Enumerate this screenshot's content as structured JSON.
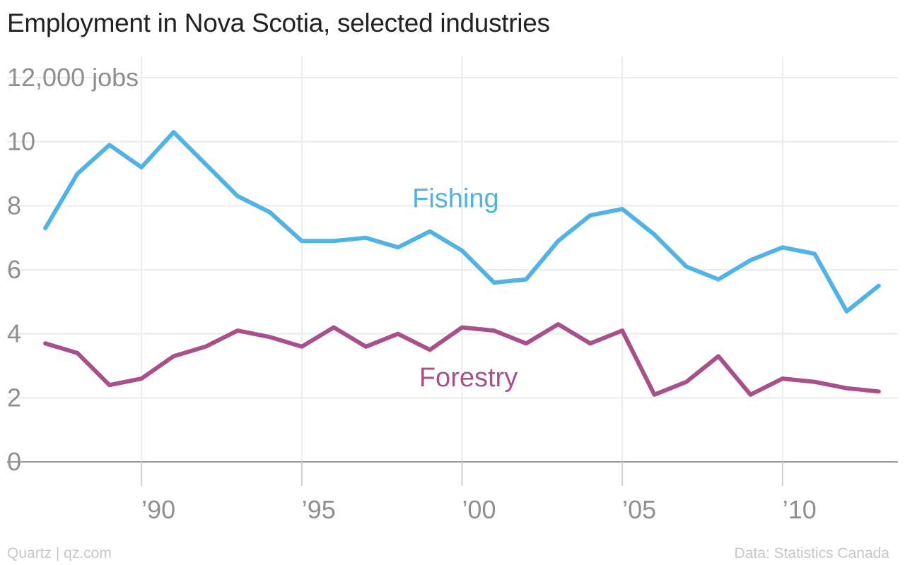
{
  "title": "Employment in Nova Scotia, selected industries",
  "footer": {
    "source_left": "Quartz | qz.com",
    "source_right": "Data: Statistics Canada"
  },
  "chart_data": {
    "type": "line",
    "title": "Employment in Nova Scotia, selected industries",
    "ylabel": "jobs",
    "ylim": [
      0,
      12000
    ],
    "xlim": [
      1986.6,
      2013.6
    ],
    "grid": true,
    "y_ticks": [
      {
        "value": 0,
        "label": "0"
      },
      {
        "value": 2000,
        "label": "2"
      },
      {
        "value": 4000,
        "label": "4"
      },
      {
        "value": 6000,
        "label": "6"
      },
      {
        "value": 8000,
        "label": "8"
      },
      {
        "value": 10000,
        "label": "10"
      },
      {
        "value": 12000,
        "label": "12,000 jobs"
      }
    ],
    "x_ticks": [
      {
        "value": 1990,
        "label": "’90"
      },
      {
        "value": 1995,
        "label": "’95"
      },
      {
        "value": 2000,
        "label": "’00"
      },
      {
        "value": 2005,
        "label": "’05"
      },
      {
        "value": 2010,
        "label": "’10"
      }
    ],
    "x": [
      1987,
      1988,
      1989,
      1990,
      1991,
      1992,
      1993,
      1994,
      1995,
      1996,
      1997,
      1998,
      1999,
      2000,
      2001,
      2002,
      2003,
      2004,
      2005,
      2006,
      2007,
      2008,
      2009,
      2010,
      2011,
      2012,
      2013
    ],
    "series": [
      {
        "name": "Fishing",
        "color": "#51b2e5",
        "label_at": [
          1999.8,
          8000
        ],
        "values": [
          7300,
          9000,
          9900,
          9200,
          10300,
          9300,
          8300,
          7800,
          6900,
          6900,
          7000,
          6700,
          7200,
          6600,
          5600,
          5700,
          6900,
          7700,
          7900,
          7100,
          6100,
          5700,
          6300,
          6700,
          6500,
          4700,
          5500
        ]
      },
      {
        "name": "Forestry",
        "color": "#a8508a",
        "label_at": [
          2000.2,
          2400
        ],
        "values": [
          3700,
          3400,
          2400,
          2600,
          3300,
          3600,
          4100,
          3900,
          3600,
          4200,
          3600,
          4000,
          3500,
          4200,
          4100,
          3700,
          4300,
          3700,
          4100,
          2100,
          2500,
          3300,
          2100,
          2600,
          2500,
          2300,
          2200
        ]
      }
    ]
  }
}
